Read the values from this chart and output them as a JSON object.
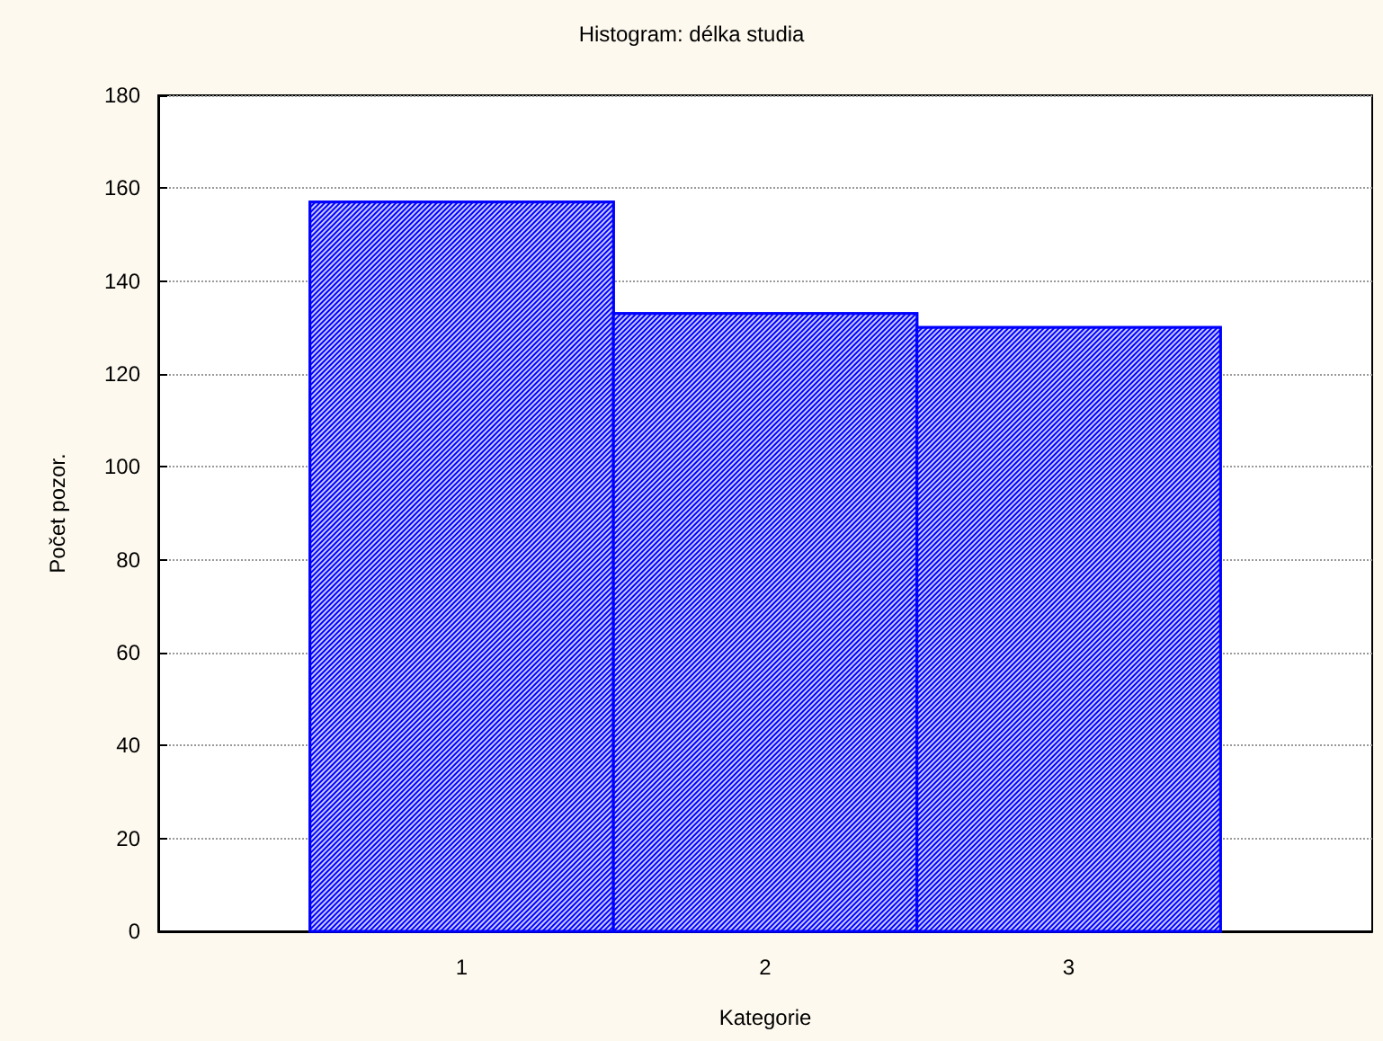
{
  "chart_data": {
    "type": "histogram",
    "title": "Histogram: délka studia",
    "xlabel": "Kategorie",
    "ylabel": "Počet pozor.",
    "bins": [
      0.5,
      1.5,
      2.5,
      3.5
    ],
    "values": [
      157,
      133,
      130
    ],
    "color": "#0000ff",
    "xlim": [
      0,
      4
    ],
    "xticks": [
      1,
      2,
      3
    ],
    "ylim": [
      0,
      180
    ],
    "yticks": [
      0,
      20,
      40,
      60,
      80,
      100,
      120,
      140,
      160,
      180
    ],
    "grid": "y"
  }
}
